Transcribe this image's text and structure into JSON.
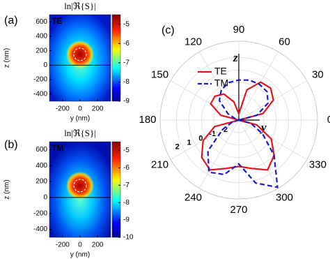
{
  "chart_data": [
    {
      "type": "heatmap",
      "panel_label": "(a)",
      "title": "ln|ℜ{S}|",
      "inset_label": "TE",
      "xlabel": "y (nm)",
      "ylabel": "z (nm)",
      "xlim": [
        -350,
        350
      ],
      "ylim": [
        -500,
        700
      ],
      "xticks": [
        -200,
        0,
        200
      ],
      "yticks": [
        -400,
        -200,
        0,
        200,
        400,
        600
      ],
      "colorbar_lim": [
        -9,
        -4.5
      ],
      "colorbar_ticks": [
        -9,
        -8,
        -7,
        -6,
        -5
      ]
    },
    {
      "type": "heatmap",
      "panel_label": "(b)",
      "title": "ln|ℜ{S}|",
      "inset_label": "TM",
      "xlabel": "y (nm)",
      "ylabel": "z (nm)",
      "xlim": [
        -350,
        350
      ],
      "ylim": [
        -500,
        700
      ],
      "xticks": [
        -200,
        0,
        200
      ],
      "yticks": [
        -400,
        -200,
        0,
        200,
        400,
        600
      ],
      "colorbar_lim": [
        -10,
        -4.5
      ],
      "colorbar_ticks": [
        -10,
        -9,
        -8,
        -7,
        -6,
        -5
      ]
    },
    {
      "type": "polar",
      "panel_label": "(c)",
      "zlabel": "z",
      "ylabel": "y",
      "rlim": [
        -3,
        3.3
      ],
      "rticks": [
        -2,
        -1,
        0,
        1,
        2
      ],
      "angle_ticks": [
        0,
        30,
        60,
        90,
        120,
        150,
        180,
        210,
        240,
        270,
        300,
        330
      ],
      "theta": [
        0,
        15,
        30,
        45,
        60,
        75,
        90,
        105,
        120,
        135,
        150,
        165,
        180,
        195,
        210,
        225,
        240,
        255,
        270,
        285,
        300,
        315,
        330,
        345
      ],
      "series": [
        {
          "name": "TE",
          "color": "#e8121b",
          "dash": false,
          "values": [
            -3,
            -1,
            0.2,
            0.6,
            0.5,
            -0.5,
            -2.5,
            -1.5,
            -0.6,
            -0.3,
            -0.4,
            -1.5,
            -3,
            -1,
            0.3,
            1.2,
            1.6,
            1.0,
            0.7,
            1.0,
            1.6,
            1.0,
            0,
            -1.5
          ]
        },
        {
          "name": "TM",
          "color": "#1a1acc",
          "dash": true,
          "values": [
            -3,
            -1.5,
            -0.3,
            0.2,
            0.3,
            0.3,
            0.2,
            0.1,
            -0.2,
            -0.8,
            -2,
            -2.8,
            -3,
            -2.5,
            -1.5,
            0.5,
            1.8,
            1.5,
            0.5,
            2.2,
            3.2,
            1.0,
            -0.8,
            -2
          ]
        }
      ]
    }
  ]
}
